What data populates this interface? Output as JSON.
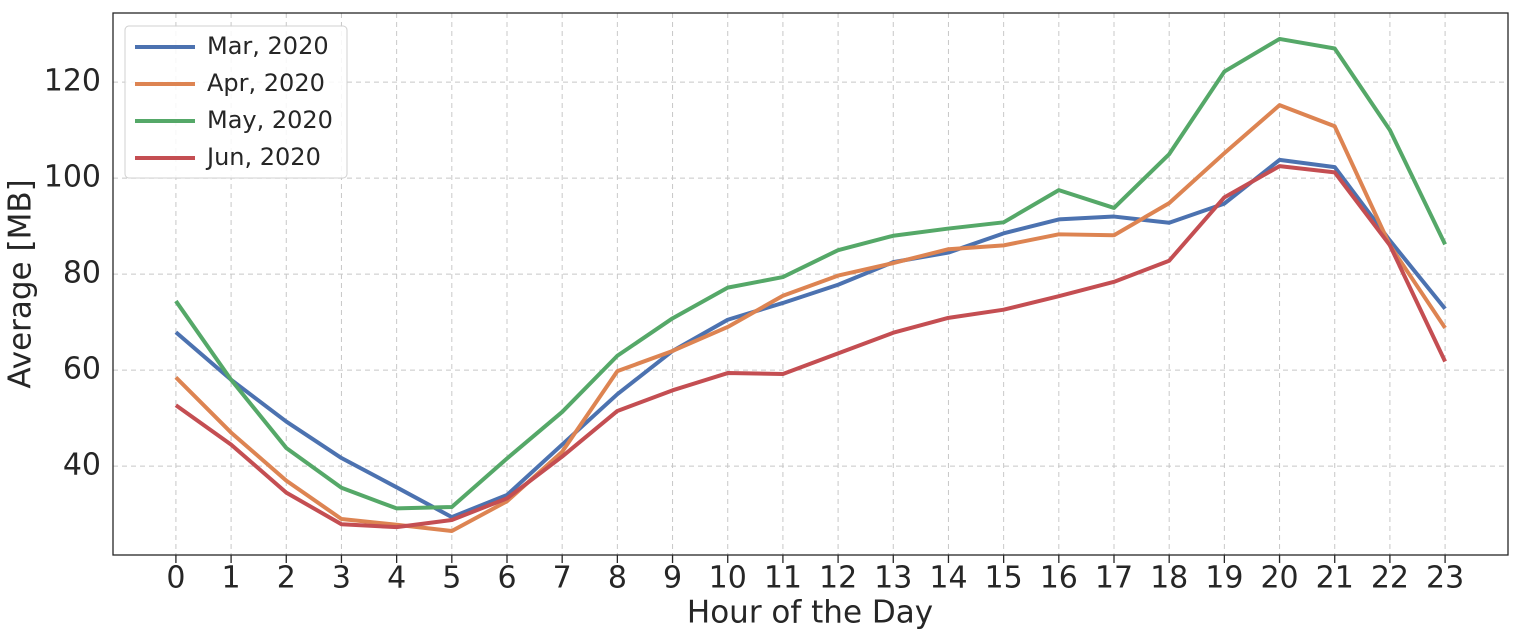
{
  "chart_data": {
    "type": "line",
    "xlabel": "Hour of the Day",
    "ylabel": "Average [MB]",
    "x": [
      0,
      1,
      2,
      3,
      4,
      5,
      6,
      7,
      8,
      9,
      10,
      11,
      12,
      13,
      14,
      15,
      16,
      17,
      18,
      19,
      20,
      21,
      22,
      23
    ],
    "series": [
      {
        "name": "Mar, 2020",
        "color": "#4c72b0",
        "values": [
          67.9,
          58,
          49.3,
          41.7,
          35.6,
          29.4,
          34,
          44.5,
          55,
          64,
          70.5,
          74,
          77.8,
          82.5,
          84.5,
          88.5,
          91.4,
          92,
          90.7,
          94.7,
          103.8,
          102.3,
          87,
          72.8
        ]
      },
      {
        "name": "Apr, 2020",
        "color": "#dd8452",
        "values": [
          58.5,
          47,
          37,
          29,
          27.8,
          26.5,
          32.7,
          43,
          59.8,
          64,
          69,
          75.5,
          79.7,
          82.3,
          85.2,
          86,
          88.3,
          88.1,
          94.8,
          105.2,
          115.2,
          110.8,
          86,
          68.8
        ]
      },
      {
        "name": "May, 2020",
        "color": "#55a868",
        "values": [
          74.4,
          58,
          43.8,
          35.5,
          31.2,
          31.5,
          41.6,
          51.3,
          63,
          70.8,
          77.2,
          79.4,
          85,
          88,
          89.5,
          90.8,
          97.5,
          93.8,
          105,
          122.2,
          129,
          127,
          110,
          86.2
        ]
      },
      {
        "name": "Jun, 2020",
        "color": "#c44e52",
        "values": [
          52.7,
          44.5,
          34.5,
          27.9,
          27.3,
          28.8,
          33.3,
          42,
          51.5,
          55.8,
          59.4,
          59.2,
          63.5,
          67.8,
          70.9,
          72.6,
          75.4,
          78.4,
          82.8,
          96,
          102.5,
          101.2,
          86,
          61.8
        ]
      }
    ],
    "xlim": [
      -1.14,
      24.14
    ],
    "ylim": [
      21.5,
      134.4
    ],
    "xticks": [
      0,
      1,
      2,
      3,
      4,
      5,
      6,
      7,
      8,
      9,
      10,
      11,
      12,
      13,
      14,
      15,
      16,
      17,
      18,
      19,
      20,
      21,
      22,
      23
    ],
    "yticks": [
      40,
      60,
      80,
      100,
      120
    ],
    "grid": true,
    "legend": "upper left"
  }
}
